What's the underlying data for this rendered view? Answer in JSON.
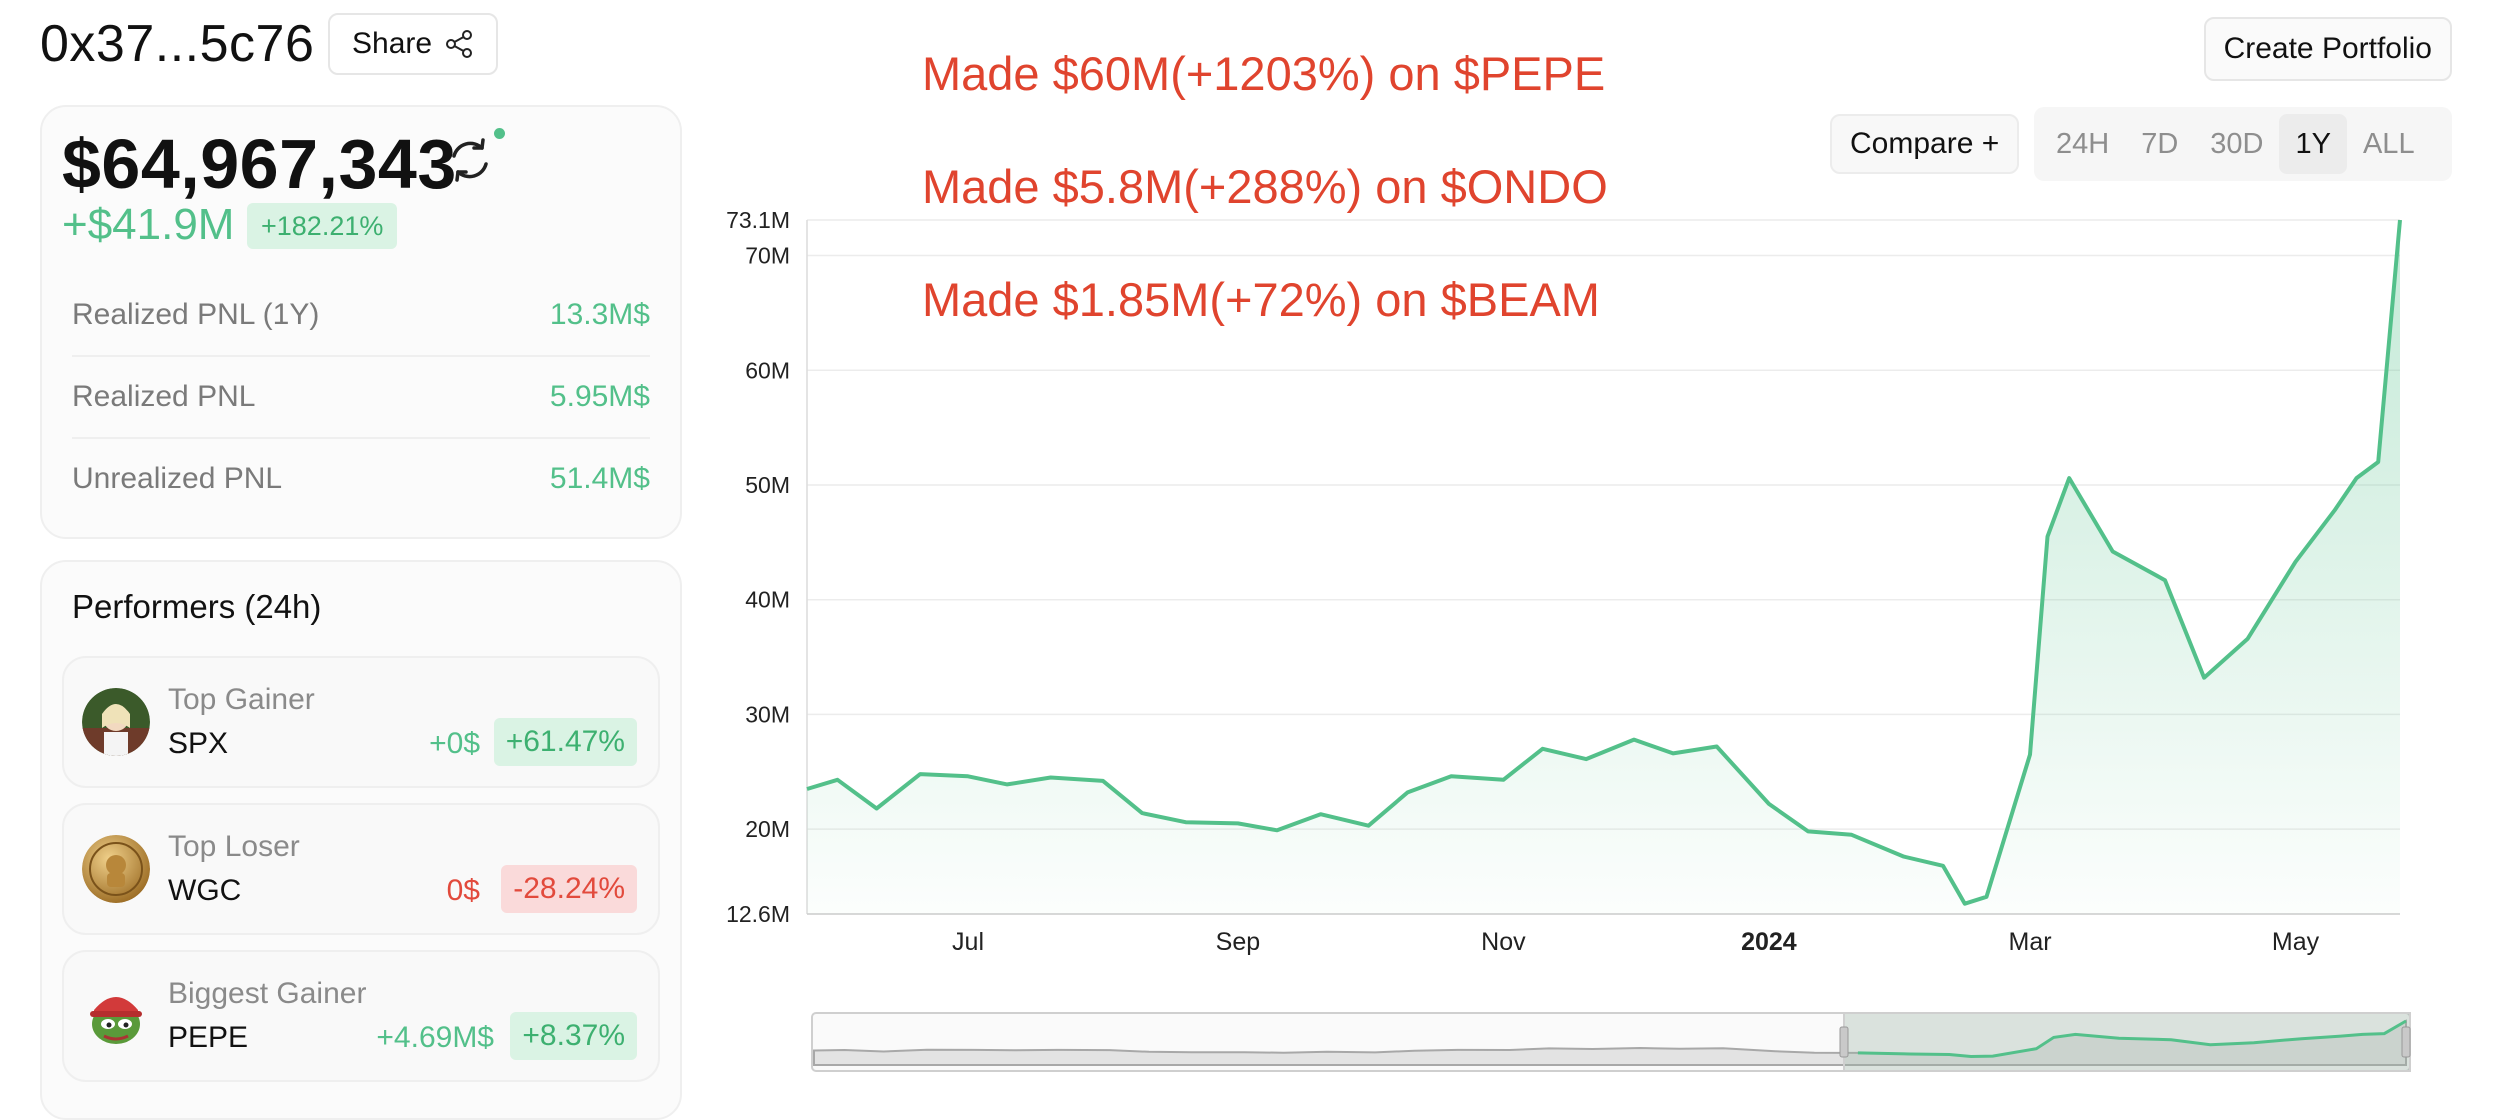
{
  "header": {
    "wallet_address": "0x37...5c76",
    "share_label": "Share",
    "create_portfolio_label": "Create Portfolio"
  },
  "annotations": [
    "Made $60M(+1203%) on $PEPE",
    "Made $5.8M(+288%) on $ONDO",
    "Made $1.85M(+72%) on $BEAM"
  ],
  "portfolio": {
    "total_value": "$64,967,343",
    "pnl_amount": "+$41.9M",
    "pnl_percent": "+182.21%",
    "rows": [
      {
        "label": "Realized PNL (1Y)",
        "value": "13.3M$"
      },
      {
        "label": "Realized PNL",
        "value": "5.95M$"
      },
      {
        "label": "Unrealized PNL",
        "value": "51.4M$"
      }
    ]
  },
  "performers": {
    "title": "Performers (24h)",
    "items": [
      {
        "label": "Top Gainer",
        "symbol": "SPX",
        "amount": "+0$",
        "percent": "+61.47%",
        "trend": "up"
      },
      {
        "label": "Top Loser",
        "symbol": "WGC",
        "amount": "0$",
        "percent": "-28.24%",
        "trend": "down"
      },
      {
        "label": "Biggest Gainer",
        "symbol": "PEPE",
        "amount": "+4.69M$",
        "percent": "+8.37%",
        "trend": "up"
      }
    ]
  },
  "controls": {
    "compare_label": "Compare +",
    "ranges": [
      "24H",
      "7D",
      "30D",
      "1Y",
      "ALL"
    ],
    "active_range": "1Y"
  },
  "colors": {
    "accent_green": "#53c08a",
    "loss_red": "#e24a3c",
    "annotation_red": "#e0442e"
  },
  "chart_data": {
    "type": "area",
    "title": "",
    "xlabel": "",
    "ylabel": "",
    "ylim": [
      12.6,
      73.1
    ],
    "y_ticks": [
      "73.1M",
      "70M",
      "60M",
      "50M",
      "40M",
      "30M",
      "20M",
      "12.6M"
    ],
    "y_tick_values": [
      73.1,
      70,
      60,
      50,
      40,
      30,
      20,
      12.6
    ],
    "x_ticks": [
      "Jul",
      "Sep",
      "Nov",
      "2024",
      "Mar",
      "May"
    ],
    "x_tick_dates": [
      "2023-07-01",
      "2023-09-01",
      "2023-11-01",
      "2024-01-01",
      "2024-03-01",
      "2024-05-01"
    ],
    "xlim": [
      "2023-05-25",
      "2024-05-25"
    ],
    "grid": true,
    "series": [
      {
        "x": [
          "2023-05-25",
          "2023-06-01",
          "2023-06-10",
          "2023-06-20",
          "2023-07-01",
          "2023-07-10",
          "2023-07-20",
          "2023-08-01",
          "2023-08-10",
          "2023-08-20",
          "2023-09-01",
          "2023-09-10",
          "2023-09-20",
          "2023-10-01",
          "2023-10-10",
          "2023-10-20",
          "2023-11-01",
          "2023-11-10",
          "2023-11-20",
          "2023-12-01",
          "2023-12-10",
          "2023-12-20",
          "2024-01-01",
          "2024-01-10",
          "2024-01-20",
          "2024-02-01",
          "2024-02-10",
          "2024-02-15",
          "2024-02-20",
          "2024-03-01",
          "2024-03-05",
          "2024-03-10",
          "2024-03-20",
          "2024-04-01",
          "2024-04-10",
          "2024-04-20",
          "2024-05-01",
          "2024-05-10",
          "2024-05-15",
          "2024-05-20",
          "2024-05-25"
        ],
        "y": [
          23.5,
          24.3,
          21.8,
          24.8,
          24.6,
          23.9,
          24.5,
          24.2,
          21.4,
          20.6,
          20.5,
          19.9,
          21.3,
          20.3,
          23.2,
          24.6,
          24.3,
          27.0,
          26.1,
          27.8,
          26.6,
          27.2,
          22.2,
          19.8,
          19.5,
          17.6,
          16.8,
          13.5,
          14.1,
          26.5,
          45.5,
          50.6,
          44.2,
          41.7,
          33.2,
          36.6,
          43.3,
          47.8,
          50.6,
          52.0,
          73.1
        ]
      }
    ]
  }
}
